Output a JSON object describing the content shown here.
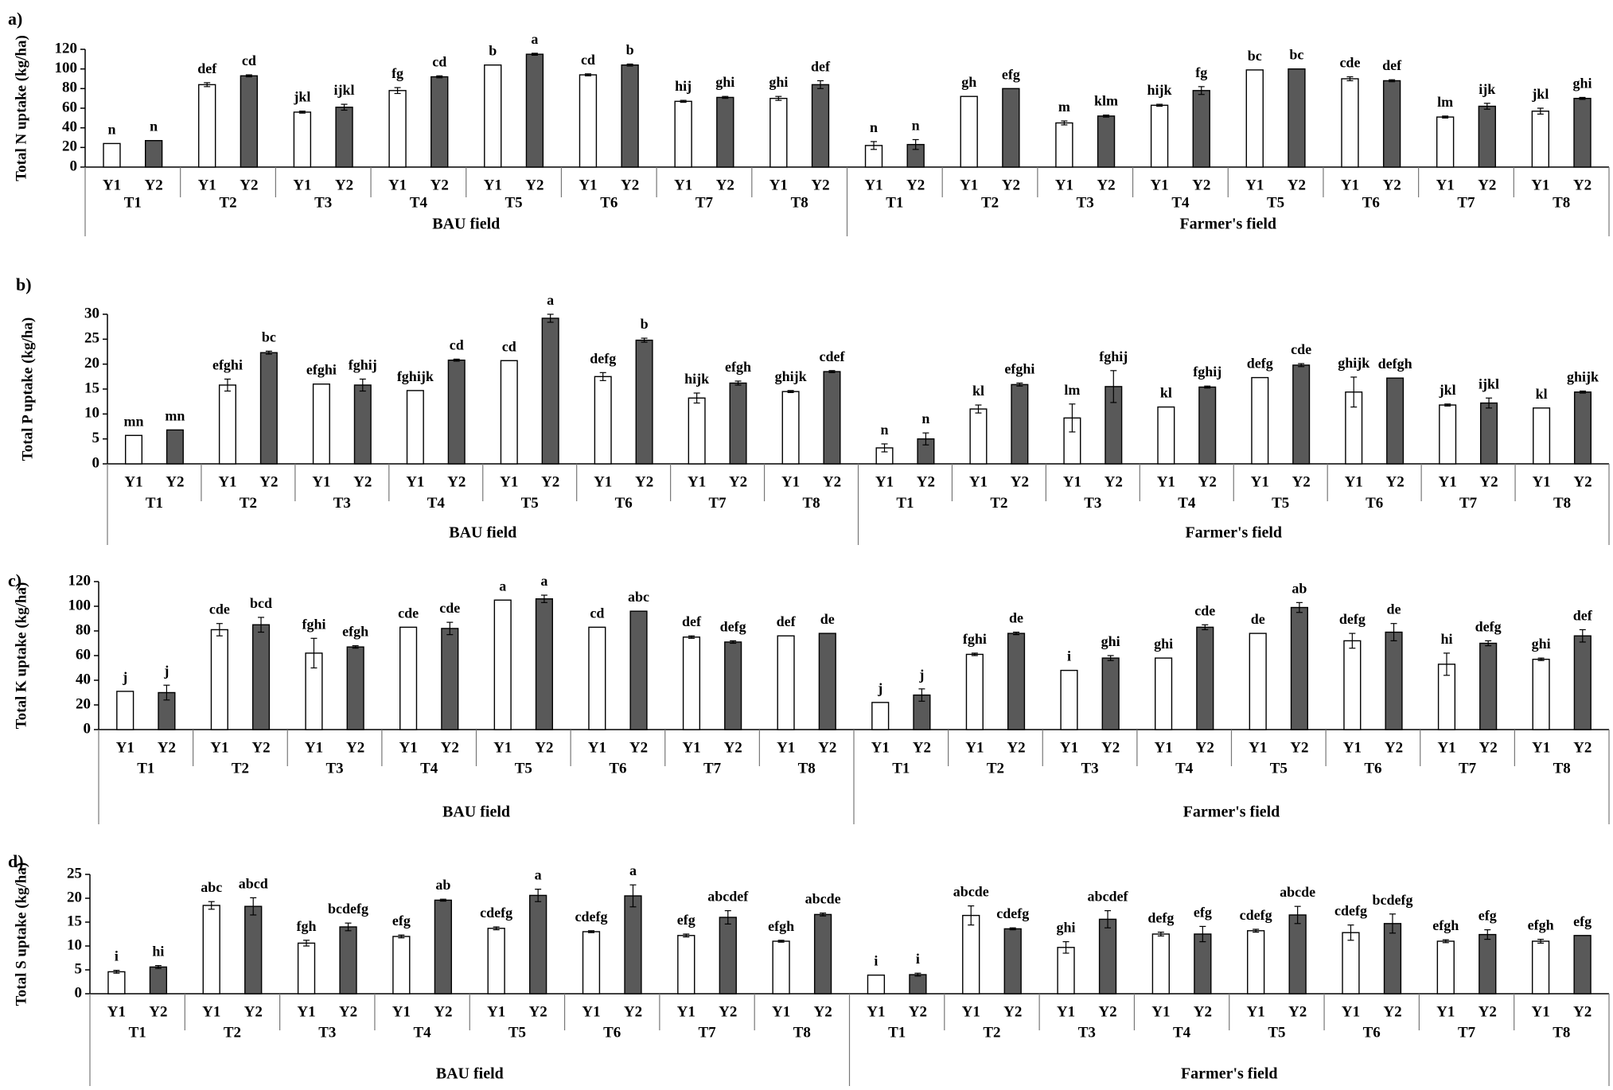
{
  "colors": {
    "Y1": "#ffffff",
    "Y2": "#595959",
    "stroke": "#000000"
  },
  "chart_data": [
    {
      "type": "bar",
      "panel": "a)",
      "ylabel": "Total N uptake (kg/ha)",
      "ylim": [
        0,
        120
      ],
      "yticks": [
        0,
        20,
        40,
        60,
        80,
        100,
        120
      ],
      "years": [
        "Y1",
        "Y2"
      ],
      "treatments": [
        "T1",
        "T2",
        "T3",
        "T4",
        "T5",
        "T6",
        "T7",
        "T8"
      ],
      "fields": [
        {
          "name": "BAU field",
          "values": [
            [
              24,
              27
            ],
            [
              84,
              93
            ],
            [
              56,
              61
            ],
            [
              78,
              92
            ],
            [
              104,
              115
            ],
            [
              94,
              104
            ],
            [
              67,
              71
            ],
            [
              70,
              84
            ]
          ],
          "errors": [
            [
              0,
              0
            ],
            [
              2,
              1
            ],
            [
              1,
              3
            ],
            [
              3,
              1
            ],
            [
              0,
              1
            ],
            [
              1,
              1
            ],
            [
              1,
              1
            ],
            [
              2,
              4
            ]
          ],
          "letters": [
            [
              "n",
              "n"
            ],
            [
              "def",
              "cd"
            ],
            [
              "jkl",
              "ijkl"
            ],
            [
              "fg",
              "cd"
            ],
            [
              "b",
              "a"
            ],
            [
              "cd",
              "b"
            ],
            [
              "hij",
              "ghi"
            ],
            [
              "ghi",
              "def"
            ]
          ]
        },
        {
          "name": "Farmer's field",
          "values": [
            [
              22,
              23
            ],
            [
              72,
              80
            ],
            [
              45,
              52
            ],
            [
              63,
              78
            ],
            [
              99,
              100
            ],
            [
              90,
              88
            ],
            [
              51,
              62
            ],
            [
              57,
              70
            ]
          ],
          "errors": [
            [
              4,
              5
            ],
            [
              0,
              0
            ],
            [
              2,
              1
            ],
            [
              1,
              4
            ],
            [
              0,
              0
            ],
            [
              2,
              1
            ],
            [
              1,
              3
            ],
            [
              3,
              1
            ]
          ],
          "letters": [
            [
              "n",
              "n"
            ],
            [
              "gh",
              "efg"
            ],
            [
              "m",
              "klm"
            ],
            [
              "hijk",
              "fg"
            ],
            [
              "bc",
              "bc"
            ],
            [
              "cde",
              "def"
            ],
            [
              "lm",
              "ijk"
            ],
            [
              "jkl",
              "ghi"
            ]
          ]
        }
      ]
    },
    {
      "type": "bar",
      "panel": "b)",
      "ylabel": "Total P uptake (kg/ha)",
      "ylim": [
        0,
        30
      ],
      "yticks": [
        0,
        5,
        10,
        15,
        20,
        25,
        30
      ],
      "years": [
        "Y1",
        "Y2"
      ],
      "treatments": [
        "T1",
        "T2",
        "T3",
        "T4",
        "T5",
        "T6",
        "T7",
        "T8"
      ],
      "fields": [
        {
          "name": "BAU field",
          "values": [
            [
              5.7,
              6.8
            ],
            [
              15.8,
              22.3
            ],
            [
              16.0,
              15.8
            ],
            [
              14.7,
              20.8
            ],
            [
              20.7,
              29.2
            ],
            [
              17.5,
              24.8
            ],
            [
              13.2,
              16.2
            ],
            [
              14.5,
              18.5
            ]
          ],
          "errors": [
            [
              0,
              0
            ],
            [
              1.2,
              0.3
            ],
            [
              0,
              1.2
            ],
            [
              0,
              0.2
            ],
            [
              0,
              0.8
            ],
            [
              0.8,
              0.4
            ],
            [
              1.0,
              0.4
            ],
            [
              0.2,
              0.2
            ]
          ],
          "letters": [
            [
              "mn",
              "mn"
            ],
            [
              "efghi",
              "bc"
            ],
            [
              "efghi",
              "fghij"
            ],
            [
              "fghijk",
              "cd"
            ],
            [
              "cd",
              "a"
            ],
            [
              "defg",
              "b"
            ],
            [
              "hijk",
              "efgh"
            ],
            [
              "ghijk",
              "cdef"
            ]
          ]
        },
        {
          "name": "Farmer's field",
          "values": [
            [
              3.2,
              5.0
            ],
            [
              11.0,
              15.9
            ],
            [
              9.2,
              15.5
            ],
            [
              11.4,
              15.4
            ],
            [
              17.3,
              19.8
            ],
            [
              14.4,
              17.2
            ],
            [
              11.8,
              12.2
            ],
            [
              11.2,
              14.4
            ]
          ],
          "errors": [
            [
              0.8,
              1.2
            ],
            [
              0.8,
              0.3
            ],
            [
              2.8,
              3.2
            ],
            [
              0,
              0.2
            ],
            [
              0,
              0.3
            ],
            [
              3.0,
              0
            ],
            [
              0.2,
              1.0
            ],
            [
              0,
              0.2
            ]
          ],
          "letters": [
            [
              "n",
              "n"
            ],
            [
              "kl",
              "efghi"
            ],
            [
              "lm",
              "fghij"
            ],
            [
              "kl",
              "fghij"
            ],
            [
              "defg",
              "cde"
            ],
            [
              "ghijk",
              "defgh"
            ],
            [
              "jkl",
              "ijkl"
            ],
            [
              "kl",
              "ghijk"
            ]
          ]
        }
      ]
    },
    {
      "type": "bar",
      "panel": "c)",
      "ylabel": "Total K uptake (kg/ha)",
      "ylim": [
        0,
        120
      ],
      "yticks": [
        0,
        20,
        40,
        60,
        80,
        100,
        120
      ],
      "years": [
        "Y1",
        "Y2"
      ],
      "treatments": [
        "T1",
        "T2",
        "T3",
        "T4",
        "T5",
        "T6",
        "T7",
        "T8"
      ],
      "fields": [
        {
          "name": "BAU field",
          "values": [
            [
              31,
              30
            ],
            [
              81,
              85
            ],
            [
              62,
              67
            ],
            [
              83,
              82
            ],
            [
              105,
              106
            ],
            [
              83,
              96
            ],
            [
              75,
              71
            ],
            [
              76,
              78
            ]
          ],
          "errors": [
            [
              0,
              6
            ],
            [
              5,
              6
            ],
            [
              12,
              1
            ],
            [
              0,
              5
            ],
            [
              0,
              3
            ],
            [
              0,
              0
            ],
            [
              1,
              1
            ],
            [
              0,
              0
            ]
          ],
          "letters": [
            [
              "j",
              "j"
            ],
            [
              "cde",
              "bcd"
            ],
            [
              "fghi",
              "efgh"
            ],
            [
              "cde",
              "cde"
            ],
            [
              "a",
              "a"
            ],
            [
              "cd",
              "abc"
            ],
            [
              "def",
              "defg"
            ],
            [
              "def",
              "de"
            ]
          ]
        },
        {
          "name": "Farmer's field",
          "values": [
            [
              22,
              28
            ],
            [
              61,
              78
            ],
            [
              48,
              58
            ],
            [
              58,
              83
            ],
            [
              78,
              99
            ],
            [
              72,
              79
            ],
            [
              53,
              70
            ],
            [
              57,
              76
            ]
          ],
          "errors": [
            [
              0,
              5
            ],
            [
              1,
              1
            ],
            [
              0,
              2
            ],
            [
              0,
              2
            ],
            [
              0,
              4
            ],
            [
              6,
              7
            ],
            [
              9,
              2
            ],
            [
              1,
              5
            ]
          ],
          "letters": [
            [
              "j",
              "j"
            ],
            [
              "fghi",
              "de"
            ],
            [
              "i",
              "ghi"
            ],
            [
              "ghi",
              "cde"
            ],
            [
              "de",
              "ab"
            ],
            [
              "defg",
              "de"
            ],
            [
              "hi",
              "defg"
            ],
            [
              "ghi",
              "def"
            ]
          ]
        }
      ]
    },
    {
      "type": "bar",
      "panel": "d)",
      "ylabel": "Total S uptake (kg/ha)",
      "ylim": [
        0,
        25
      ],
      "yticks": [
        0,
        5,
        10,
        15,
        20,
        25
      ],
      "years": [
        "Y1",
        "Y2"
      ],
      "treatments": [
        "T1",
        "T2",
        "T3",
        "T4",
        "T5",
        "T6",
        "T7",
        "T8"
      ],
      "fields": [
        {
          "name": "BAU field",
          "values": [
            [
              4.6,
              5.6
            ],
            [
              18.5,
              18.3
            ],
            [
              10.6,
              14.0
            ],
            [
              12.0,
              19.6
            ],
            [
              13.7,
              20.6
            ],
            [
              13.0,
              20.5
            ],
            [
              12.2,
              16.0
            ],
            [
              11.0,
              16.6
            ]
          ],
          "errors": [
            [
              0.3,
              0.3
            ],
            [
              0.8,
              1.8
            ],
            [
              0.6,
              0.8
            ],
            [
              0.3,
              0.2
            ],
            [
              0.3,
              1.3
            ],
            [
              0.2,
              2.3
            ],
            [
              0.3,
              1.4
            ],
            [
              0.2,
              0.3
            ]
          ],
          "letters": [
            [
              "i",
              "hi"
            ],
            [
              "abc",
              "abcd"
            ],
            [
              "fgh",
              "bcdefg"
            ],
            [
              "efg",
              "ab"
            ],
            [
              "cdefg",
              "a"
            ],
            [
              "cdefg",
              "a"
            ],
            [
              "efg",
              "abcdef"
            ],
            [
              "efgh",
              "abcde"
            ]
          ]
        },
        {
          "name": "Farmer's field",
          "values": [
            [
              3.9,
              4.0
            ],
            [
              16.4,
              13.6
            ],
            [
              9.7,
              15.6
            ],
            [
              12.5,
              12.5
            ],
            [
              13.2,
              16.5
            ],
            [
              12.8,
              14.7
            ],
            [
              11.0,
              12.4
            ],
            [
              11.0,
              12.2
            ]
          ],
          "errors": [
            [
              0,
              0.3
            ],
            [
              2.0,
              0.2
            ],
            [
              1.2,
              1.8
            ],
            [
              0.4,
              1.6
            ],
            [
              0.3,
              1.8
            ],
            [
              1.6,
              2.0
            ],
            [
              0.3,
              1.0
            ],
            [
              0.4,
              0
            ]
          ],
          "letters": [
            [
              "i",
              "i"
            ],
            [
              "abcde",
              "cdefg"
            ],
            [
              "ghi",
              "abcdef"
            ],
            [
              "defg",
              "efg"
            ],
            [
              "cdefg",
              "abcde"
            ],
            [
              "cdefg",
              "bcdefg"
            ],
            [
              "efgh",
              "efg"
            ],
            [
              "efgh",
              "efg"
            ]
          ]
        }
      ]
    }
  ]
}
